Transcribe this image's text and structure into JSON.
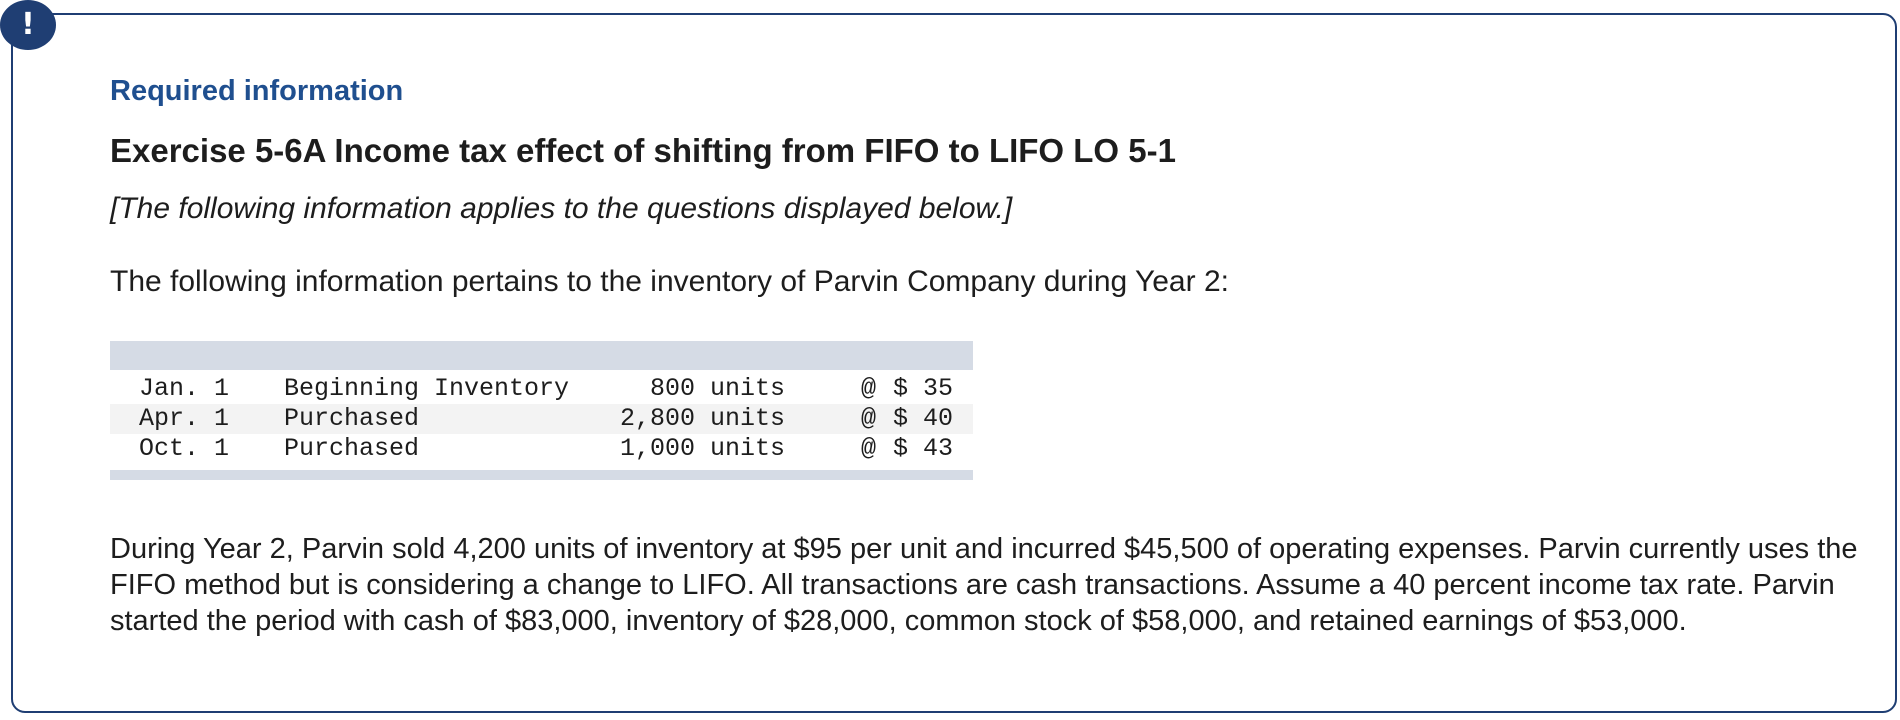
{
  "alert": {
    "glyph": "!"
  },
  "header": {
    "required_title": "Required information",
    "exercise_title": "Exercise 5-6A Income tax effect of shifting from FIFO to LIFO LO 5-1",
    "note": "[The following information applies to the questions displayed below.]"
  },
  "intro": "The following information pertains to the inventory of Parvin Company during Year 2:",
  "inventory": {
    "rows": [
      {
        "date": "Jan. 1",
        "description": "Beginning Inventory",
        "units": "800 units",
        "at": "@",
        "price": "$ 35"
      },
      {
        "date": "Apr. 1",
        "description": "Purchased",
        "units": "2,800 units",
        "at": "@",
        "price": "$ 40"
      },
      {
        "date": "Oct. 1",
        "description": "Purchased",
        "units": "1,000 units",
        "at": "@",
        "price": "$ 43"
      }
    ]
  },
  "paragraph": "During Year 2, Parvin sold 4,200 units of inventory at $95 per unit and incurred $45,500 of operating expenses. Parvin currently uses the FIFO method but is considering a change to LIFO. All transactions are cash transactions. Assume a 40 percent income tax rate. Parvin started the period with cash of $83,000, inventory of $28,000, common stock of $58,000, and retained earnings of $53,000.",
  "colors": {
    "border": "#1f3e73",
    "required_title": "#1f4f8f",
    "table_band": "#d5dbe5",
    "text": "#1d1d1d"
  }
}
